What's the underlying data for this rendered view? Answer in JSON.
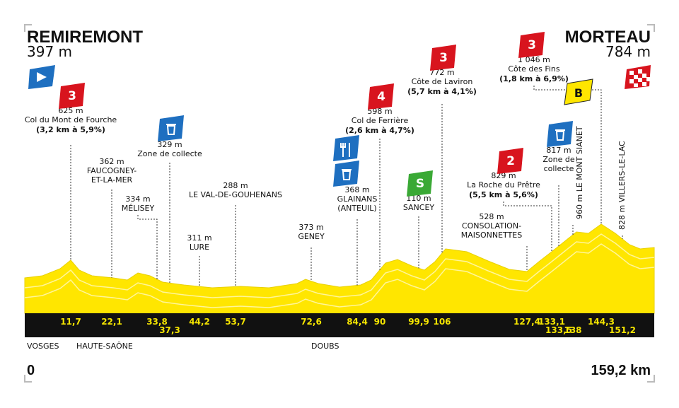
{
  "header": {
    "start": {
      "name": "REMIREMONT",
      "altitude": "397 m"
    },
    "finish": {
      "name": "MORTEAU",
      "altitude": "784 m"
    }
  },
  "waypoints": [
    {
      "km": "11,7",
      "altitude": "625 m",
      "name": [
        "Col du Mont de Fourche"
      ],
      "grade": "(3,2 km à 5,9%)",
      "category": "3"
    },
    {
      "km": "22,1",
      "altitude": "362 m",
      "name": [
        "FAUCOGNEY-",
        "ET-LA-MER"
      ]
    },
    {
      "km": "33,8",
      "altitude": "334 m",
      "name": [
        "MÉLISEY"
      ]
    },
    {
      "km": "37,3",
      "altitude": "329 m",
      "name": [
        "Zone de collecte"
      ]
    },
    {
      "km": "44,2",
      "altitude": "311 m",
      "name": [
        "LURE"
      ]
    },
    {
      "km": "53,7",
      "altitude": "288 m",
      "name": [
        "LE VAL-DE-GOUHENANS"
      ]
    },
    {
      "km": "72,6",
      "altitude": "373 m",
      "name": [
        "GENEY"
      ]
    },
    {
      "km": "84,4",
      "altitude": "368 m",
      "name": [
        "GLAINANS",
        "(ANTEUIL)"
      ]
    },
    {
      "km": "90",
      "altitude": "598 m",
      "name": [
        "Col de Ferrière"
      ],
      "grade": "(2,6 km à 4,7%)",
      "category": "4"
    },
    {
      "km": "99,9",
      "altitude": "110 m",
      "name": [
        "SANCEY"
      ],
      "category": "S"
    },
    {
      "km": "106",
      "altitude": "772 m",
      "name": [
        "Côte de Laviron"
      ],
      "grade": "(5,7 km à 4,1%)",
      "category": "3"
    },
    {
      "km": "127,4",
      "altitude": "528 m",
      "name": [
        "CONSOLATION-",
        "MAISONNETTES"
      ]
    },
    {
      "km": "133,1",
      "altitude": "829 m",
      "name": [
        "La Roche du Prêtre"
      ],
      "grade": "(5,5 km à 5,6%)",
      "category": "2"
    },
    {
      "km": "133,5",
      "altitude": "817 m",
      "name": [
        "Zone de",
        "collecte"
      ]
    },
    {
      "km": "138",
      "vertical": "960 m LE MONT SIANET"
    },
    {
      "km": "144,3",
      "altitude": "1 046 m",
      "name": [
        "Côte des Fins"
      ],
      "grade": "(1,8 km à 6,9%)",
      "category": "3",
      "bonus": "B"
    },
    {
      "km": "151,2",
      "vertical": "828 m VILLERS-LE-LAC"
    }
  ],
  "regions": [
    "VOSGES",
    "HAUTE-SAÔNE",
    "DOUBS"
  ],
  "distance": {
    "start": "0",
    "end": "159,2 km"
  }
}
